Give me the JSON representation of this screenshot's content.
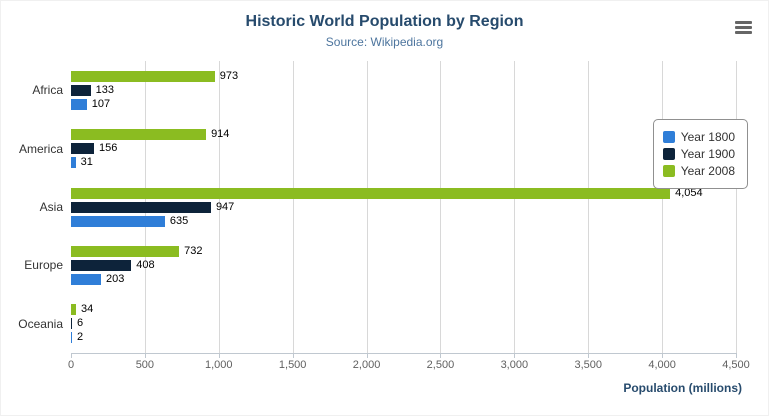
{
  "chart_data": {
    "type": "bar",
    "orientation": "horizontal",
    "title": "Historic World Population by Region",
    "subtitle": "Source: Wikipedia.org",
    "xlabel": "Population (millions)",
    "categories": [
      "Africa",
      "America",
      "Asia",
      "Europe",
      "Oceania"
    ],
    "series": [
      {
        "name": "Year 1800",
        "color": "#2f7ed8",
        "values": [
          107,
          31,
          635,
          203,
          2
        ]
      },
      {
        "name": "Year 1900",
        "color": "#0d233a",
        "values": [
          133,
          156,
          947,
          408,
          6
        ]
      },
      {
        "name": "Year 2008",
        "color": "#8bbc21",
        "values": [
          973,
          914,
          4054,
          732,
          34
        ]
      }
    ],
    "display_order_top_to_bottom": [
      "Year 2008",
      "Year 1900",
      "Year 1800"
    ],
    "xlim": [
      0,
      4500
    ],
    "xticks": [
      0,
      500,
      1000,
      1500,
      2000,
      2500,
      3000,
      3500,
      4000,
      4500
    ],
    "grid": true,
    "legend_position": "right",
    "legend": [
      "Year 1800",
      "Year 1900",
      "Year 2008"
    ]
  },
  "icons": {
    "menu": "hamburger-menu-icon"
  }
}
